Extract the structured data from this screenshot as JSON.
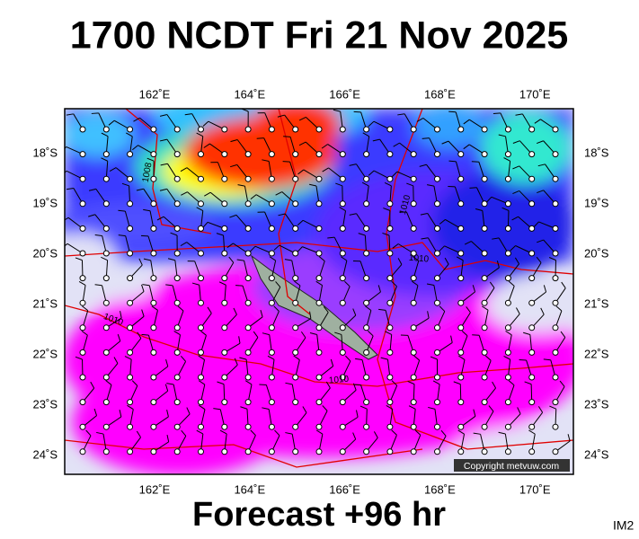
{
  "header": {
    "title": "1700 NCDT Fri 21 Nov 2025"
  },
  "map": {
    "lon_labels": [
      "162˚E",
      "164˚E",
      "166˚E",
      "168˚E",
      "170˚E"
    ],
    "lat_labels": [
      "18˚S",
      "19˚S",
      "20˚S",
      "21˚S",
      "22˚S",
      "23˚S",
      "24˚S"
    ],
    "isobar_labels": [
      "1008",
      "1010",
      "1010",
      "1010",
      "1010"
    ],
    "copyright": "Copyright metvuw.com"
  },
  "footer": {
    "forecast": "Forecast +96 hr",
    "code": "IM2"
  }
}
